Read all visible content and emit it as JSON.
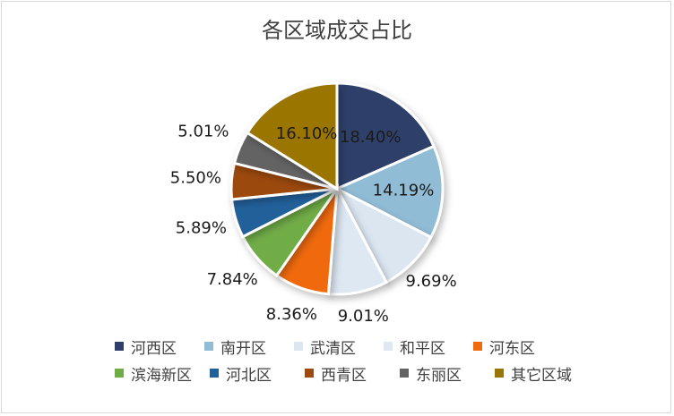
{
  "chart_data": {
    "type": "pie",
    "title": "各区域成交占比",
    "categories": [
      "河西区",
      "南开区",
      "武清区",
      "和平区",
      "河东区",
      "滨海新区",
      "河北区",
      "西青区",
      "东丽区",
      "其它区域"
    ],
    "values": [
      18.4,
      14.19,
      9.69,
      9.01,
      8.36,
      7.84,
      5.89,
      5.5,
      5.01,
      16.1
    ],
    "labels": [
      "18.40%",
      "14.19%",
      "9.69%",
      "9.01%",
      "8.36%",
      "7.84%",
      "5.89%",
      "5.50%",
      "5.01%",
      "16.10%"
    ],
    "colors": [
      "#2e3f6b",
      "#91bcd6",
      "#dbe6f1",
      "#dde8f3",
      "#f06a0f",
      "#71ad47",
      "#22609a",
      "#9c4a0f",
      "#636363",
      "#9a7506"
    ],
    "legend_position": "bottom"
  }
}
